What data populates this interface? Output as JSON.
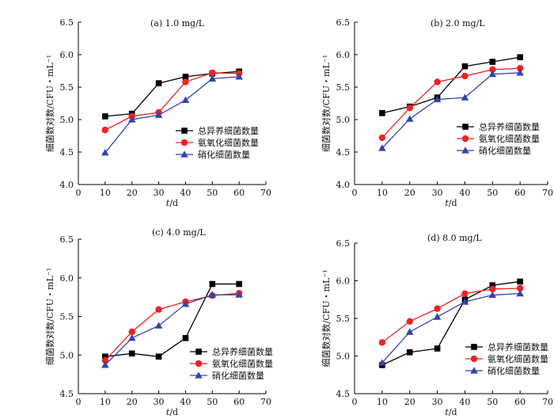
{
  "figure": {
    "ylabel": "细菌数对数/CFU・mL⁻¹",
    "xlabel_var": "t",
    "xlabel_unit": "/d"
  },
  "chart_data": [
    {
      "type": "line",
      "title": "(a)  1.0 mg/L",
      "xlabel": "t/d",
      "ylabel": "细菌数对数/CFU・mL⁻¹",
      "x": [
        10,
        20,
        30,
        40,
        50,
        60
      ],
      "xlim": [
        0,
        70
      ],
      "ylim": [
        4.0,
        6.5
      ],
      "xticks": [
        "0",
        "10",
        "20",
        "30",
        "40",
        "50",
        "60",
        "70"
      ],
      "yticks": [
        "4.0",
        "4.5",
        "5.0",
        "5.5",
        "6.0",
        "6.5"
      ],
      "legend_position": "right-middle",
      "series": [
        {
          "name": "总异养细菌数量",
          "values": [
            5.05,
            5.09,
            5.56,
            5.66,
            5.71,
            5.74
          ],
          "color": "#000000",
          "marker": "square"
        },
        {
          "name": "氨氧化细菌数量",
          "values": [
            4.84,
            5.05,
            5.11,
            5.58,
            5.72,
            5.71
          ],
          "color": "#ee2222",
          "marker": "circle"
        },
        {
          "name": "硝化细菌数量",
          "values": [
            4.49,
            5.0,
            5.07,
            5.3,
            5.63,
            5.66
          ],
          "color": "#3344aa",
          "marker": "triangle"
        }
      ]
    },
    {
      "type": "line",
      "title": "(b)  2.0 mg/L",
      "xlabel": "t/d",
      "ylabel": "细菌数对数/CFU・mL⁻¹",
      "x": [
        10,
        20,
        30,
        40,
        50,
        60
      ],
      "xlim": [
        0,
        70
      ],
      "ylim": [
        4.0,
        6.5
      ],
      "xticks": [
        "0",
        "10",
        "20",
        "30",
        "40",
        "50",
        "60",
        "70"
      ],
      "yticks": [
        "4.0",
        "4.5",
        "5.0",
        "5.5",
        "6.0",
        "6.5"
      ],
      "legend_position": "bottom-right",
      "series": [
        {
          "name": "总异养细菌数量",
          "values": [
            5.1,
            5.2,
            5.34,
            5.82,
            5.89,
            5.96
          ],
          "color": "#000000",
          "marker": "square"
        },
        {
          "name": "氨氧化细菌数量",
          "values": [
            4.72,
            5.18,
            5.58,
            5.67,
            5.77,
            5.79
          ],
          "color": "#ee2222",
          "marker": "circle"
        },
        {
          "name": "硝化细菌数量",
          "values": [
            4.56,
            5.01,
            5.31,
            5.34,
            5.7,
            5.72
          ],
          "color": "#3344aa",
          "marker": "triangle"
        }
      ]
    },
    {
      "type": "line",
      "title": "(c)  4.0 mg/L",
      "xlabel": "t/d",
      "ylabel": "细菌数对数/CFU・mL⁻¹",
      "x": [
        10,
        20,
        30,
        40,
        50,
        60
      ],
      "xlim": [
        0,
        70
      ],
      "ylim": [
        4.5,
        6.5
      ],
      "xticks": [
        "0",
        "10",
        "20",
        "30",
        "40",
        "50",
        "60",
        "70"
      ],
      "yticks": [
        "4.5",
        "5.0",
        "5.5",
        "6.0",
        "6.5"
      ],
      "legend_position": "bottom-right",
      "series": [
        {
          "name": "总异养细菌数量",
          "values": [
            4.98,
            5.02,
            4.98,
            5.22,
            5.92,
            5.92
          ],
          "color": "#000000",
          "marker": "square"
        },
        {
          "name": "氨氧化细菌数量",
          "values": [
            4.93,
            5.3,
            5.59,
            5.69,
            5.77,
            5.8
          ],
          "color": "#ee2222",
          "marker": "circle"
        },
        {
          "name": "硝化细菌数量",
          "values": [
            4.87,
            5.22,
            5.38,
            5.66,
            5.78,
            5.78
          ],
          "color": "#3344aa",
          "marker": "triangle"
        }
      ]
    },
    {
      "type": "line",
      "title": "(d)  8.0 mg/L",
      "xlabel": "t/d",
      "ylabel": "细菌数对数/CFU・mL⁻¹",
      "x": [
        10,
        20,
        30,
        40,
        50,
        60
      ],
      "xlim": [
        0,
        70
      ],
      "ylim": [
        4.5,
        6.5
      ],
      "xticks": [
        "0",
        "10",
        "20",
        "30",
        "40",
        "50",
        "60",
        "70"
      ],
      "yticks": [
        "4.5",
        "5.0",
        "5.5",
        "6.0",
        "6.5"
      ],
      "legend_position": "bottom-right",
      "series": [
        {
          "name": "总异养细菌数量",
          "values": [
            4.88,
            5.05,
            5.1,
            5.75,
            5.94,
            5.99
          ],
          "color": "#000000",
          "marker": "square"
        },
        {
          "name": "氨氧化细菌数量",
          "values": [
            5.18,
            5.46,
            5.63,
            5.83,
            5.89,
            5.9
          ],
          "color": "#ee2222",
          "marker": "circle"
        },
        {
          "name": "硝化细菌数量",
          "values": [
            4.91,
            5.32,
            5.52,
            5.72,
            5.81,
            5.83
          ],
          "color": "#3344aa",
          "marker": "triangle"
        }
      ]
    }
  ]
}
